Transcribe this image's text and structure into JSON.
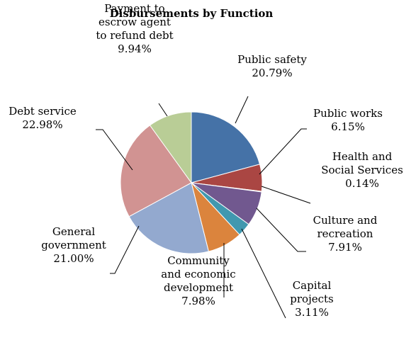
{
  "chart_data": {
    "type": "pie",
    "title": "Disbursements  by Function",
    "slices": [
      {
        "label": [
          "Public safety"
        ],
        "pct_text": "20.79%",
        "value": 20.79,
        "color": "#4572a7"
      },
      {
        "label": [
          "Public works"
        ],
        "pct_text": "6.15%",
        "value": 6.15,
        "color": "#aa4643"
      },
      {
        "label": [
          "Health and",
          "Social Services"
        ],
        "pct_text": "0.14%",
        "value": 0.14,
        "color": "#89a54e"
      },
      {
        "label": [
          "Culture and",
          "recreation"
        ],
        "pct_text": "7.91%",
        "value": 7.91,
        "color": "#71588f"
      },
      {
        "label": [
          "Capital",
          "projects"
        ],
        "pct_text": "3.11%",
        "value": 3.11,
        "color": "#4198af"
      },
      {
        "label": [
          "Community",
          "and economic",
          "development"
        ],
        "pct_text": "7.98%",
        "value": 7.98,
        "color": "#db843d"
      },
      {
        "label": [
          "General",
          "government"
        ],
        "pct_text": "21.00%",
        "value": 21.0,
        "color": "#93a9cf"
      },
      {
        "label": [
          "Debt service"
        ],
        "pct_text": "22.98%",
        "value": 22.98,
        "color": "#d19392"
      },
      {
        "label": [
          "Payment to",
          "escrow agent",
          "to refund debt"
        ],
        "pct_text": "9.94%",
        "value": 9.94,
        "color": "#b9cd96"
      }
    ],
    "legend": "none"
  }
}
